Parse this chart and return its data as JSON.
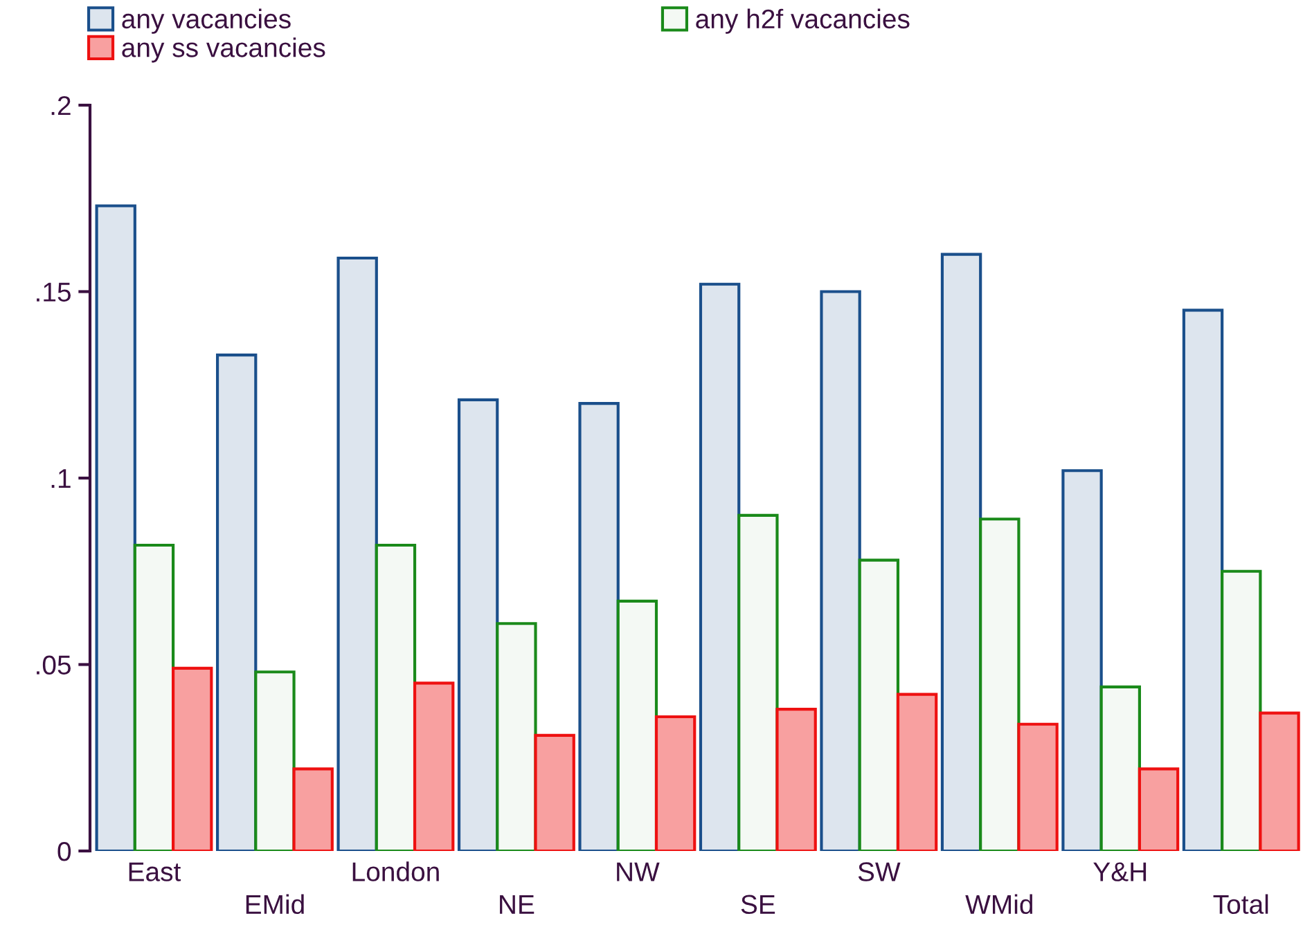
{
  "chart_data": {
    "type": "bar",
    "categories": [
      "East",
      "EMid",
      "London",
      "NE",
      "NW",
      "SE",
      "SW",
      "WMid",
      "Y&H",
      "Total"
    ],
    "series": [
      {
        "name": "any vacancies",
        "color": "#1a4f8b",
        "values": [
          0.173,
          0.133,
          0.159,
          0.121,
          0.12,
          0.152,
          0.15,
          0.16,
          0.102,
          0.145
        ]
      },
      {
        "name": "any h2f vacancies",
        "color": "#1a8a1a",
        "values": [
          0.082,
          0.048,
          0.082,
          0.061,
          0.067,
          0.09,
          0.078,
          0.089,
          0.044,
          0.075
        ]
      },
      {
        "name": "any ss vacancies",
        "color": "#ee1111",
        "values": [
          0.049,
          0.022,
          0.045,
          0.031,
          0.036,
          0.038,
          0.042,
          0.034,
          0.022,
          0.037
        ]
      }
    ],
    "ylim": [
      0,
      0.2
    ],
    "yticks": [
      0,
      {
        "value": 0.05,
        "label": ".05"
      },
      {
        "value": 0.1,
        "label": ".1"
      },
      {
        "value": 0.15,
        "label": ".15"
      },
      {
        "value": 0.2,
        "label": ".2"
      }
    ],
    "grid": false,
    "legend": "top"
  }
}
